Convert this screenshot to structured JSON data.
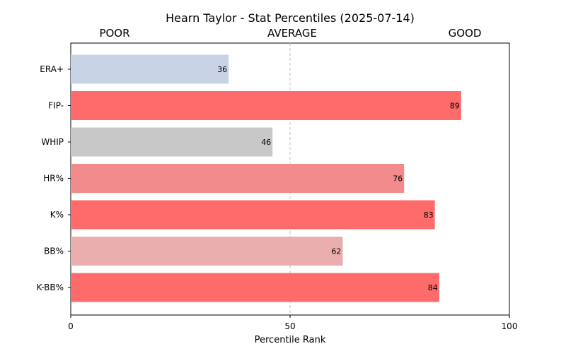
{
  "chart_data": {
    "type": "bar",
    "orientation": "horizontal",
    "title": "Hearn Taylor - Stat Percentiles (2025-07-14)",
    "xlabel": "Percentile Rank",
    "ylabel": "",
    "xlim": [
      0,
      100
    ],
    "xticks": [
      0,
      50,
      100
    ],
    "grid": false,
    "reference_line": {
      "x": 50,
      "style": "dashed",
      "color": "#c0c0c0"
    },
    "zone_labels": [
      "POOR",
      "AVERAGE",
      "GOOD"
    ],
    "categories": [
      "ERA+",
      "FIP-",
      "WHIP",
      "HR%",
      "K%",
      "BB%",
      "K-BB%"
    ],
    "values": [
      36,
      89,
      46,
      76,
      83,
      62,
      84
    ],
    "colors": [
      "#c8d4e5",
      "#ff6b6b",
      "#c8c8c8",
      "#f28b8b",
      "#ff6b6b",
      "#ebaeae",
      "#ff6b6b"
    ]
  }
}
